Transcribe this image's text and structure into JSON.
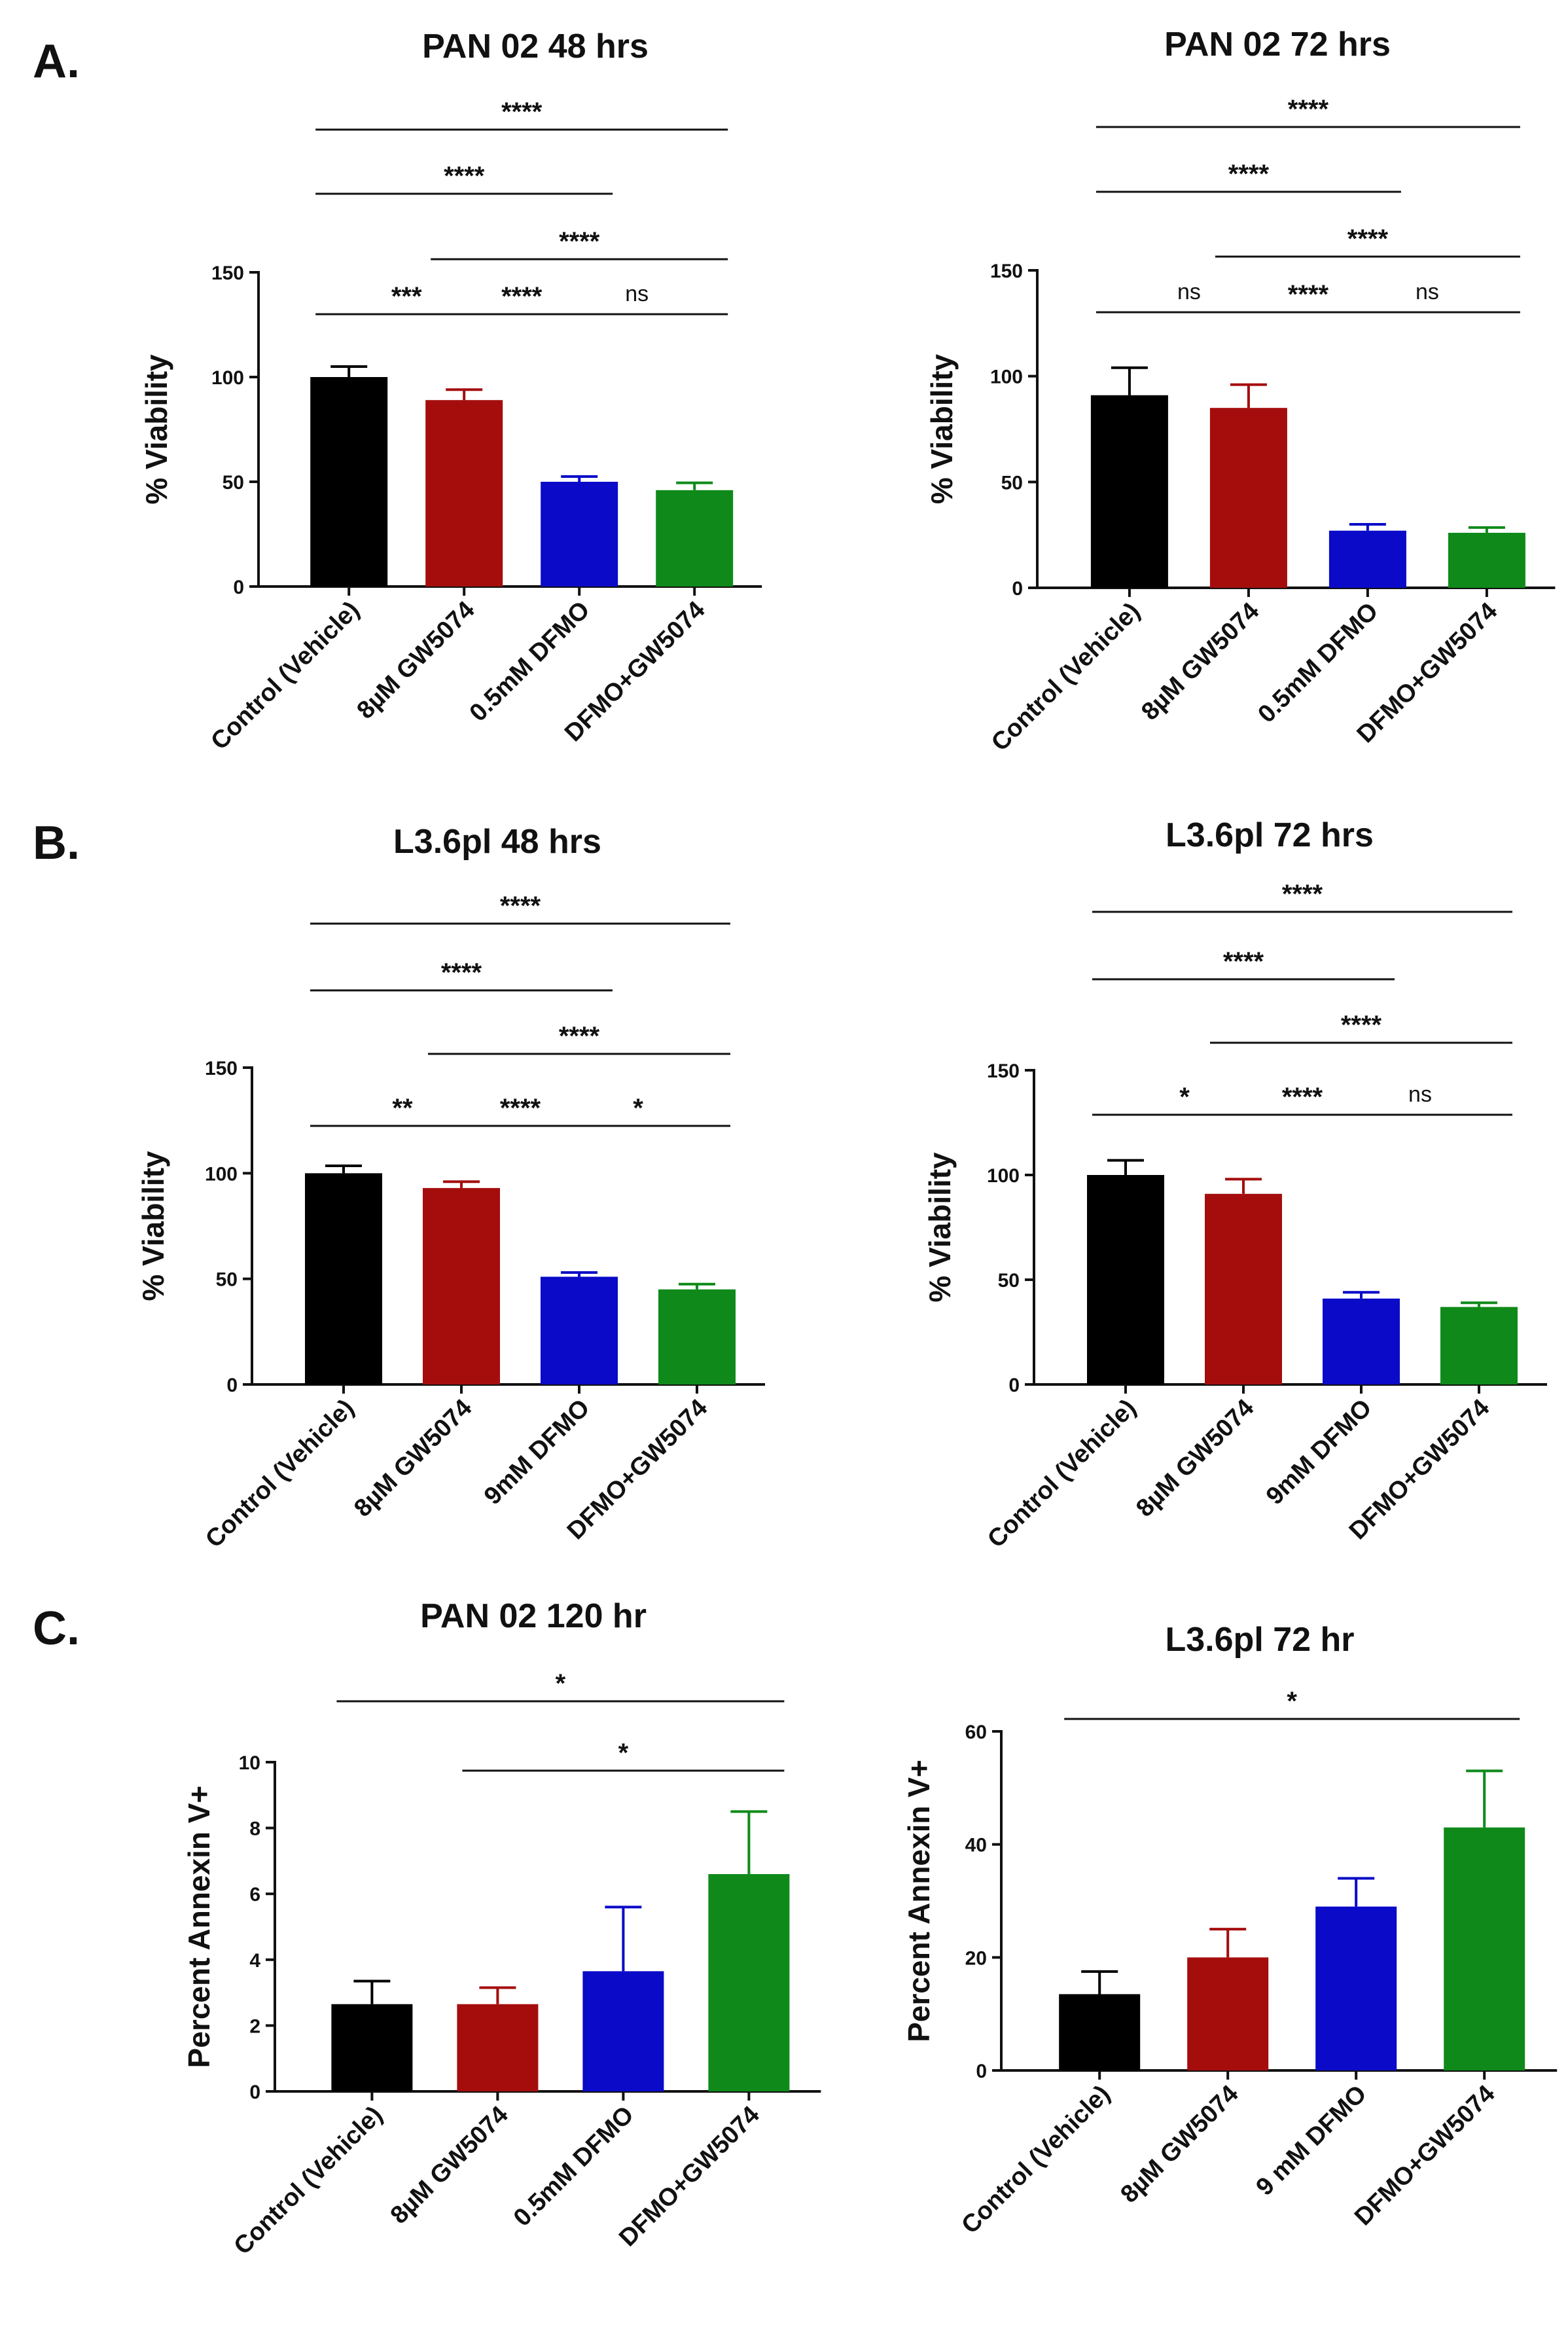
{
  "section_labels": [
    "A.",
    "B.",
    "C."
  ],
  "chart_data": [
    {
      "type": "bar",
      "title": "PAN 02 48 hrs",
      "xlabel": "",
      "ylabel": "% Viability",
      "ylim": [
        0,
        150
      ],
      "yticks": [
        0,
        50,
        100,
        150
      ],
      "categories": [
        "Control (Vehicle)",
        "8µM GW5074",
        "0.5mM DFMO",
        "DFMO+GW5074"
      ],
      "values": [
        100,
        89,
        50,
        46
      ],
      "errors": [
        5,
        5,
        2.5,
        3.5
      ],
      "colors": [
        "#000000",
        "#a50d0d",
        "#0a0ac8",
        "#0f8a1a"
      ],
      "significance": [
        {
          "from": 0,
          "to": 3,
          "label": "****"
        },
        {
          "from": 0,
          "to": 2,
          "label": "****"
        },
        {
          "from": 1,
          "to": 3,
          "label": "****"
        },
        {
          "from": 0,
          "to": 1,
          "label": "***"
        },
        {
          "from": 1,
          "to": 2,
          "label": "****"
        },
        {
          "from": 2,
          "to": 3,
          "label": "ns"
        }
      ]
    },
    {
      "type": "bar",
      "title": "PAN 02 72 hrs",
      "xlabel": "",
      "ylabel": "% Viability",
      "ylim": [
        0,
        150
      ],
      "yticks": [
        0,
        50,
        100,
        150
      ],
      "categories": [
        "Control (Vehicle)",
        "8µM GW5074",
        "0.5mM DFMO",
        "DFMO+GW5074"
      ],
      "values": [
        91,
        85,
        27,
        26
      ],
      "errors": [
        13,
        11,
        3,
        2.5
      ],
      "colors": [
        "#000000",
        "#a50d0d",
        "#0a0ac8",
        "#0f8a1a"
      ],
      "significance": [
        {
          "from": 0,
          "to": 3,
          "label": "****"
        },
        {
          "from": 0,
          "to": 2,
          "label": "****"
        },
        {
          "from": 1,
          "to": 3,
          "label": "****"
        },
        {
          "from": 0,
          "to": 1,
          "label": "ns"
        },
        {
          "from": 1,
          "to": 2,
          "label": "****"
        },
        {
          "from": 2,
          "to": 3,
          "label": "ns"
        }
      ]
    },
    {
      "type": "bar",
      "title": "L3.6pl 48 hrs",
      "xlabel": "",
      "ylabel": "% Viability",
      "ylim": [
        0,
        150
      ],
      "yticks": [
        0,
        50,
        100,
        150
      ],
      "categories": [
        "Control (Vehicle)",
        "8µM GW5074",
        "9mM DFMO",
        "DFMO+GW5074"
      ],
      "values": [
        100,
        93,
        51,
        45
      ],
      "errors": [
        3.5,
        3,
        2,
        2.5
      ],
      "colors": [
        "#000000",
        "#a50d0d",
        "#0a0ac8",
        "#0f8a1a"
      ],
      "significance": [
        {
          "from": 0,
          "to": 3,
          "label": "****"
        },
        {
          "from": 0,
          "to": 2,
          "label": "****"
        },
        {
          "from": 1,
          "to": 3,
          "label": "****"
        },
        {
          "from": 0,
          "to": 1,
          "label": "**"
        },
        {
          "from": 1,
          "to": 2,
          "label": "****"
        },
        {
          "from": 2,
          "to": 3,
          "label": "*"
        }
      ]
    },
    {
      "type": "bar",
      "title": "L3.6pl 72 hrs",
      "xlabel": "",
      "ylabel": "% Viability",
      "ylim": [
        0,
        150
      ],
      "yticks": [
        0,
        50,
        100,
        150
      ],
      "categories": [
        "Control (Vehicle)",
        "8µM GW5074",
        "9mM DFMO",
        "DFMO+GW5074"
      ],
      "values": [
        100,
        91,
        41,
        37
      ],
      "errors": [
        7,
        7,
        3,
        2
      ],
      "colors": [
        "#000000",
        "#a50d0d",
        "#0a0ac8",
        "#0f8a1a"
      ],
      "significance": [
        {
          "from": 0,
          "to": 3,
          "label": "****"
        },
        {
          "from": 0,
          "to": 2,
          "label": "****"
        },
        {
          "from": 1,
          "to": 3,
          "label": "****"
        },
        {
          "from": 0,
          "to": 1,
          "label": "*"
        },
        {
          "from": 1,
          "to": 2,
          "label": "****"
        },
        {
          "from": 2,
          "to": 3,
          "label": "ns"
        }
      ]
    },
    {
      "type": "bar",
      "title": "PAN 02 120 hr",
      "xlabel": "",
      "ylabel": "Percent Annexin V+",
      "ylim": [
        0,
        10
      ],
      "yticks": [
        0,
        2,
        4,
        6,
        8,
        10
      ],
      "categories": [
        "Control (Vehicle)",
        "8µM GW5074",
        "0.5mM DFMO",
        "DFMO+GW5074"
      ],
      "values": [
        2.65,
        2.65,
        3.65,
        6.6
      ],
      "errors": [
        0.7,
        0.5,
        1.95,
        1.9
      ],
      "colors": [
        "#000000",
        "#a50d0d",
        "#0a0ac8",
        "#0f8a1a"
      ],
      "significance": [
        {
          "from": 0,
          "to": 3,
          "label": "*"
        },
        {
          "from": 1,
          "to": 3,
          "label": "*"
        }
      ]
    },
    {
      "type": "bar",
      "title": "L3.6pl 72 hr",
      "xlabel": "",
      "ylabel": "Percent Annexin V+",
      "ylim": [
        0,
        60
      ],
      "yticks": [
        0,
        20,
        40,
        60
      ],
      "categories": [
        "Control (Vehicle)",
        "8µM GW5074",
        "9 mM DFMO",
        "DFMO+GW5074"
      ],
      "values": [
        13.5,
        20,
        29,
        43
      ],
      "errors": [
        4,
        5,
        5,
        10
      ],
      "colors": [
        "#000000",
        "#a50d0d",
        "#0a0ac8",
        "#0f8a1a"
      ],
      "significance": [
        {
          "from": 0,
          "to": 3,
          "label": "*"
        }
      ]
    }
  ]
}
